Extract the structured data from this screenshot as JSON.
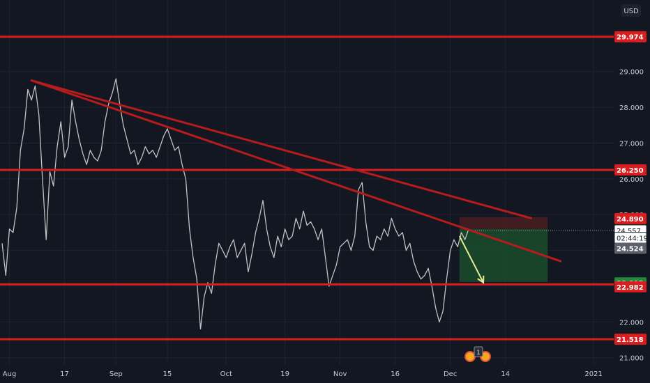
{
  "chart_data": {
    "type": "line",
    "currency_label": "USD",
    "y_axis": {
      "min": 20.8,
      "max": 31.0,
      "ticks": [
        "29.000",
        "28.000",
        "27.000",
        "26.000",
        "25.000",
        "24.000",
        "23.000",
        "22.000",
        "21.000"
      ]
    },
    "x_axis": {
      "min": 0,
      "max": 150,
      "ticks": [
        {
          "x": 2,
          "label": "Aug"
        },
        {
          "x": 17,
          "label": "17"
        },
        {
          "x": 31,
          "label": "Sep"
        },
        {
          "x": 45,
          "label": "15"
        },
        {
          "x": 61,
          "label": "Oct"
        },
        {
          "x": 77,
          "label": "19"
        },
        {
          "x": 92,
          "label": "Nov"
        },
        {
          "x": 107,
          "label": "16"
        },
        {
          "x": 122,
          "label": "Dec"
        },
        {
          "x": 137,
          "label": "14"
        },
        {
          "x": 161,
          "label": "2021"
        }
      ]
    },
    "price_series": [
      [
        0,
        24.2
      ],
      [
        1,
        23.3
      ],
      [
        2,
        24.6
      ],
      [
        3,
        24.5
      ],
      [
        4,
        25.2
      ],
      [
        5,
        26.8
      ],
      [
        6,
        27.4
      ],
      [
        7,
        28.5
      ],
      [
        8,
        28.2
      ],
      [
        9,
        28.6
      ],
      [
        10,
        27.8
      ],
      [
        11,
        26.0
      ],
      [
        12,
        24.3
      ],
      [
        13,
        26.2
      ],
      [
        14,
        25.8
      ],
      [
        15,
        26.9
      ],
      [
        16,
        27.6
      ],
      [
        17,
        26.6
      ],
      [
        18,
        26.9
      ],
      [
        19,
        28.2
      ],
      [
        20,
        27.6
      ],
      [
        21,
        27.1
      ],
      [
        22,
        26.7
      ],
      [
        23,
        26.4
      ],
      [
        24,
        26.8
      ],
      [
        25,
        26.6
      ],
      [
        26,
        26.5
      ],
      [
        27,
        26.8
      ],
      [
        28,
        27.6
      ],
      [
        29,
        28.1
      ],
      [
        30,
        28.4
      ],
      [
        31,
        28.8
      ],
      [
        32,
        28.1
      ],
      [
        33,
        27.5
      ],
      [
        34,
        27.1
      ],
      [
        35,
        26.7
      ],
      [
        36,
        26.8
      ],
      [
        37,
        26.4
      ],
      [
        38,
        26.6
      ],
      [
        39,
        26.9
      ],
      [
        40,
        26.7
      ],
      [
        41,
        26.8
      ],
      [
        42,
        26.6
      ],
      [
        43,
        26.9
      ],
      [
        44,
        27.2
      ],
      [
        45,
        27.4
      ],
      [
        46,
        27.1
      ],
      [
        47,
        26.8
      ],
      [
        48,
        26.9
      ],
      [
        49,
        26.4
      ],
      [
        50,
        26.0
      ],
      [
        51,
        24.6
      ],
      [
        52,
        23.8
      ],
      [
        53,
        23.2
      ],
      [
        54,
        21.8
      ],
      [
        55,
        22.7
      ],
      [
        56,
        23.1
      ],
      [
        57,
        22.8
      ],
      [
        58,
        23.6
      ],
      [
        59,
        24.2
      ],
      [
        60,
        24.0
      ],
      [
        61,
        23.8
      ],
      [
        62,
        24.1
      ],
      [
        63,
        24.3
      ],
      [
        64,
        23.8
      ],
      [
        65,
        24.0
      ],
      [
        66,
        24.2
      ],
      [
        67,
        23.4
      ],
      [
        68,
        23.9
      ],
      [
        69,
        24.5
      ],
      [
        70,
        24.9
      ],
      [
        71,
        25.4
      ],
      [
        72,
        24.6
      ],
      [
        73,
        24.1
      ],
      [
        74,
        23.8
      ],
      [
        75,
        24.4
      ],
      [
        76,
        24.1
      ],
      [
        77,
        24.6
      ],
      [
        78,
        24.3
      ],
      [
        79,
        24.4
      ],
      [
        80,
        24.9
      ],
      [
        81,
        24.6
      ],
      [
        82,
        25.1
      ],
      [
        83,
        24.7
      ],
      [
        84,
        24.8
      ],
      [
        85,
        24.6
      ],
      [
        86,
        24.3
      ],
      [
        87,
        24.6
      ],
      [
        88,
        23.8
      ],
      [
        89,
        23.0
      ],
      [
        90,
        23.3
      ],
      [
        91,
        23.6
      ],
      [
        92,
        24.1
      ],
      [
        93,
        24.2
      ],
      [
        94,
        24.3
      ],
      [
        95,
        24.0
      ],
      [
        96,
        24.4
      ],
      [
        97,
        25.7
      ],
      [
        98,
        25.9
      ],
      [
        99,
        24.8
      ],
      [
        100,
        24.1
      ],
      [
        101,
        24.0
      ],
      [
        102,
        24.4
      ],
      [
        103,
        24.3
      ],
      [
        104,
        24.6
      ],
      [
        105,
        24.4
      ],
      [
        106,
        24.9
      ],
      [
        107,
        24.6
      ],
      [
        108,
        24.4
      ],
      [
        109,
        24.5
      ],
      [
        110,
        24.0
      ],
      [
        111,
        24.2
      ],
      [
        112,
        23.7
      ],
      [
        113,
        23.4
      ],
      [
        114,
        23.2
      ],
      [
        115,
        23.3
      ],
      [
        116,
        23.5
      ],
      [
        117,
        23.0
      ],
      [
        118,
        22.4
      ],
      [
        119,
        22.0
      ],
      [
        120,
        22.3
      ],
      [
        121,
        23.2
      ],
      [
        122,
        24.0
      ],
      [
        123,
        24.3
      ],
      [
        124,
        24.1
      ],
      [
        125,
        24.5
      ],
      [
        126,
        24.3
      ],
      [
        127,
        24.6
      ]
    ],
    "horizontal_levels": [
      {
        "price": 29.974,
        "label": "29.974"
      },
      {
        "price": 26.25,
        "label": "26.250"
      },
      {
        "price": 23.05,
        "label": ""
      },
      {
        "price": 21.518,
        "label": "21.518"
      }
    ],
    "trendlines": [
      {
        "x1": 8,
        "y1": 28.75,
        "x2": 152,
        "y2": 23.7
      },
      {
        "x1": 8,
        "y1": 28.75,
        "x2": 144,
        "y2": 24.9
      }
    ],
    "position": {
      "x_start": 124.5,
      "x_end": 148.5,
      "entry": 24.6,
      "stop": 24.93,
      "target": 23.12
    },
    "projection_arrow": {
      "x1": 124.5,
      "y1": 24.4,
      "x2": 131,
      "y2": 23.1
    },
    "price_tags": [
      {
        "price": 29.974,
        "label": "29.974",
        "color": "#d81e1e"
      },
      {
        "price": 26.25,
        "label": "26.250",
        "color": "#d81e1e"
      },
      {
        "price": 24.89,
        "label": "24.890",
        "color": "#d81e1e"
      },
      {
        "price": 24.557,
        "label": "24.557",
        "color": "#ffffff"
      },
      {
        "price": 24.35,
        "label": "02:44:19",
        "color": "#ffffff"
      },
      {
        "price": 24.06,
        "label": "24.524",
        "color": "#5d606b"
      },
      {
        "price": 23.093,
        "label": "23.093",
        "color": "#1e8a3a"
      },
      {
        "price": 22.982,
        "label": "22.982",
        "color": "#d81e1e"
      },
      {
        "price": 21.518,
        "label": "21.518",
        "color": "#d81e1e"
      }
    ],
    "last_price": 24.557,
    "events_badge": "1",
    "colors": {
      "background": "#131722",
      "price_line": "#c3c3c3",
      "level": "#d81e1e",
      "profit_zone": "#1a4d2a",
      "loss_zone": "#4a1e22",
      "arrow": "#e6ec9a"
    }
  }
}
